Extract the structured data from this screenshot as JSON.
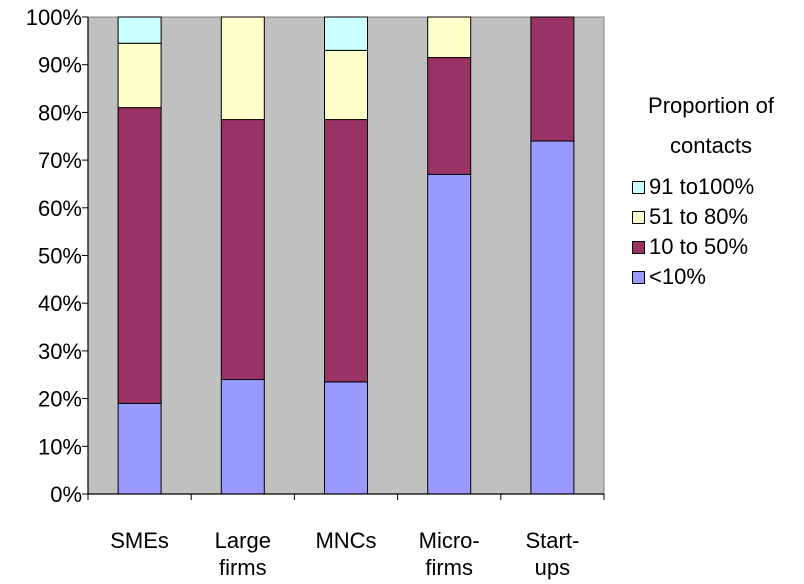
{
  "chart_data": {
    "type": "bar",
    "stacked": true,
    "percent": true,
    "title": "",
    "xlabel": "",
    "ylabel": "",
    "ylim": [
      0,
      100
    ],
    "yticks": [
      "0%",
      "10%",
      "20%",
      "30%",
      "40%",
      "50%",
      "60%",
      "70%",
      "80%",
      "90%",
      "100%"
    ],
    "categories": [
      [
        "SMEs"
      ],
      [
        "Large",
        "firms"
      ],
      [
        "MNCs"
      ],
      [
        "Micro-",
        "firms"
      ],
      [
        "Start-",
        "ups"
      ]
    ],
    "series": [
      {
        "name": "<10%",
        "color": "#9999ff",
        "values": [
          19,
          24,
          23.5,
          67,
          74
        ]
      },
      {
        "name": "10 to 50%",
        "color": "#993366",
        "values": [
          62,
          54.5,
          55,
          24.5,
          26
        ]
      },
      {
        "name": "51 to 80%",
        "color": "#ffffcc",
        "values": [
          13.5,
          21.5,
          14.5,
          8.5,
          0
        ]
      },
      {
        "name": "91 to100%",
        "color": "#ccffff",
        "values": [
          5.5,
          0,
          7,
          0,
          0
        ]
      }
    ],
    "plot_background": "#c0c0c0",
    "grid": false,
    "legend": {
      "title": [
        "Proportion of",
        "contacts"
      ],
      "placement": "right",
      "items": [
        "91 to100%",
        "51 to 80%",
        "10 to 50%",
        "<10%"
      ]
    }
  }
}
